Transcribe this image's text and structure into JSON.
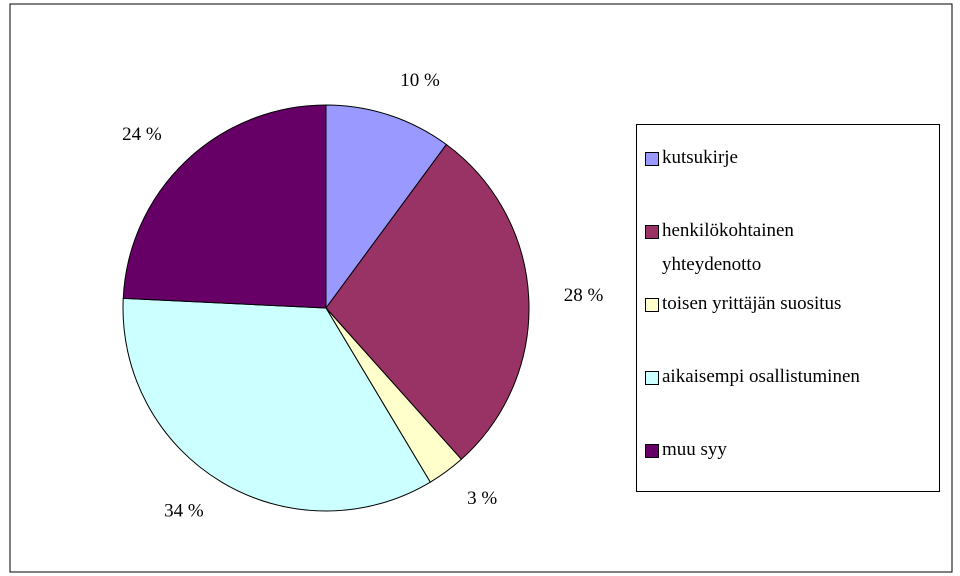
{
  "chart_data": {
    "type": "pie",
    "categories": [
      "kutsukirje",
      "henkilökohtainen yhteydenotto",
      "toisen yrittäjän suositus",
      "aikaisempi osallistuminen",
      "muu syy"
    ],
    "values": [
      10,
      28,
      3,
      34,
      24
    ],
    "value_labels": [
      "10 %",
      "28 %",
      "3 %",
      "34 %",
      "24 %"
    ],
    "colors": [
      "#9999ff",
      "#993366",
      "#ffffcc",
      "#ccffff",
      "#660066"
    ],
    "legend": "right"
  }
}
